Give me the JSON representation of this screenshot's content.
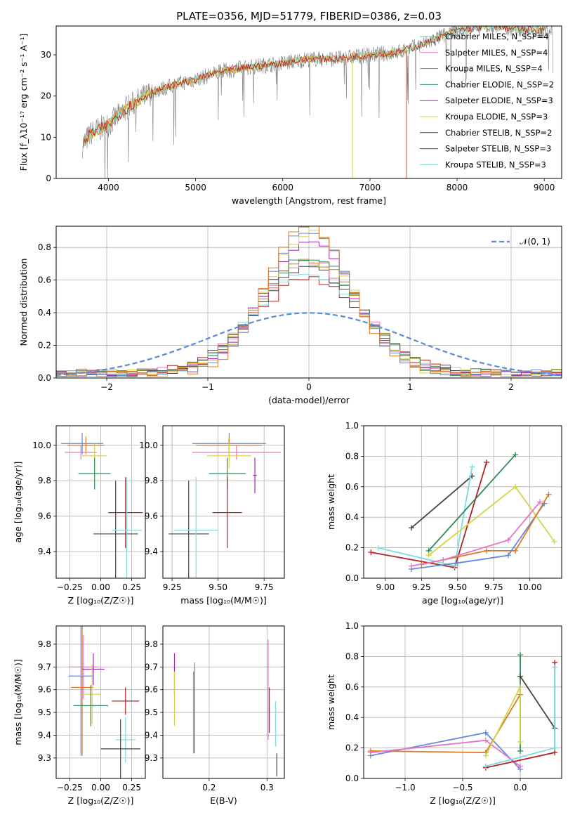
{
  "colors": {
    "chabrier_miles": "#76b7b2",
    "salpeter_miles": "#e377c2",
    "kroupa_miles": "#b8860b",
    "chabrier_elodie": "#2e8b57",
    "salpeter_elodie": "#9c27b0",
    "kroupa_elodie": "#d4d44a",
    "chabrier_stelib": "#444444",
    "salpeter_stelib": "#b22222",
    "kroupa_stelib": "#7fdbdb",
    "blue": "#6688dd",
    "orange": "#e07820",
    "pink": "#e377c2",
    "data": "#808080",
    "normal": "#5b8ad6"
  },
  "chart_data": [
    {
      "id": "spectrum",
      "type": "line",
      "title": "PLATE=0356, MJD=51779, FIBERID=0386, z=0.03",
      "xlabel": "wavelength [Angstrom, rest frame]",
      "ylabel": "Flux [f_λ10⁻¹⁷ erg cm⁻² s⁻¹ A⁻¹]",
      "xlim": [
        3400,
        9200
      ],
      "ylim": [
        0,
        37
      ],
      "xticks": [
        "4000",
        "5000",
        "6000",
        "7000",
        "8000",
        "9000"
      ],
      "yticks": [
        "0",
        "10",
        "20",
        "30"
      ],
      "grid": false,
      "legend_position": "top-right",
      "legend": [
        "Chabrier MILES, N_SSP=4",
        "Salpeter MILES, N_SSP=4",
        "Kroupa MILES, N_SSP=4",
        "Chabrier ELODIE, N_SSP=2",
        "Salpeter ELODIE, N_SSP=3",
        "Kroupa ELODIE, N_SSP=3",
        "Chabrier STELIB, N_SSP=2",
        "Salpeter STELIB, N_SSP=3",
        "Kroupa STELIB, N_SSP=3"
      ],
      "trend_x": [
        3700,
        3800,
        4000,
        4200,
        4500,
        4800,
        5000,
        5300,
        5600,
        6000,
        6300,
        6600,
        7000,
        7300,
        7600,
        8000,
        8400,
        8800,
        9100
      ],
      "trend_y": [
        8,
        11,
        13,
        17,
        21,
        23,
        24,
        26,
        27,
        28,
        29,
        29,
        30,
        30.5,
        32.5,
        36,
        37,
        36,
        36
      ]
    },
    {
      "id": "residuals",
      "type": "histogram",
      "xlabel": "(data-model)/error",
      "ylabel": "Normed distribution",
      "xlim": [
        -2.5,
        2.5
      ],
      "ylim": [
        0,
        0.93
      ],
      "xticks": [
        "−2",
        "−1",
        "0",
        "1",
        "2"
      ],
      "yticks": [
        "0.0",
        "0.2",
        "0.4",
        "0.6",
        "0.8"
      ],
      "grid": true,
      "legend": [
        "𝒩(0, 1)"
      ],
      "legend_position": "top-right",
      "bin_width": 0.1,
      "bin_start": -2.5,
      "peak_values": [
        0.57,
        0.62,
        0.64,
        0.68,
        0.7,
        0.72,
        0.8,
        0.86,
        0.87,
        0.91
      ],
      "normal_curve": {
        "mean": 0,
        "sigma": 1
      }
    },
    {
      "id": "age_vs_z",
      "type": "errorbar",
      "xlabel": "Z [log₁₀(Z/Z☉)]",
      "ylabel": "age  [log₁₀(age/yr)]",
      "xlim": [
        -0.36,
        0.36
      ],
      "ylim": [
        9.25,
        10.11
      ],
      "xticks": [
        "−0.25",
        "0.00",
        "0.25"
      ],
      "yticks": [
        "9.4",
        "9.6",
        "9.8",
        "10.0"
      ],
      "grid": true,
      "points": [
        {
          "x": -0.15,
          "y": 10.01,
          "xerr": 0.17,
          "yerr": 0.06,
          "c": "blue"
        },
        {
          "x": -0.12,
          "y": 10.0,
          "xerr": 0.15,
          "yerr": 0.05,
          "c": "orange"
        },
        {
          "x": -0.16,
          "y": 9.96,
          "xerr": 0.13,
          "yerr": 0.04,
          "c": "pink"
        },
        {
          "x": -0.05,
          "y": 9.94,
          "xerr": 0.1,
          "yerr": 0.07,
          "c": "kroupa_elodie"
        },
        {
          "x": -0.05,
          "y": 9.84,
          "xerr": 0.13,
          "yerr": 0.09,
          "c": "chabrier_elodie"
        },
        {
          "x": 0.12,
          "y": 9.5,
          "xerr": 0.18,
          "yerr": 0.3,
          "c": "chabrier_stelib"
        },
        {
          "x": 0.2,
          "y": 9.62,
          "xerr": 0.14,
          "yerr": 0.2,
          "c": "salpeter_stelib"
        },
        {
          "x": 0.21,
          "y": 9.52,
          "xerr": 0.12,
          "yerr": 0.3,
          "c": "kroupa_stelib"
        }
      ]
    },
    {
      "id": "age_vs_mass",
      "type": "errorbar",
      "xlabel": "mass [log₁₀(M/M☉)]",
      "xlim": [
        9.2,
        9.86
      ],
      "ylim": [
        9.25,
        10.11
      ],
      "xticks": [
        "9.25",
        "9.50",
        "9.75"
      ],
      "yticks": [
        "9.4",
        "9.6",
        "9.8",
        "10.0"
      ],
      "grid": true,
      "points": [
        {
          "x": 9.56,
          "y": 10.01,
          "xerr": 0.2,
          "yerr": 0.06,
          "c": "blue"
        },
        {
          "x": 9.56,
          "y": 10.0,
          "xerr": 0.18,
          "yerr": 0.05,
          "c": "orange"
        },
        {
          "x": 9.6,
          "y": 9.96,
          "xerr": 0.24,
          "yerr": 0.04,
          "c": "pink"
        },
        {
          "x": 9.56,
          "y": 9.94,
          "xerr": 0.12,
          "yerr": 0.07,
          "c": "kroupa_elodie"
        },
        {
          "x": 9.55,
          "y": 9.84,
          "xerr": 0.1,
          "yerr": 0.09,
          "c": "chabrier_elodie"
        },
        {
          "x": 9.7,
          "y": 9.83,
          "xerr": 0.01,
          "yerr": 0.1,
          "c": "salpeter_elodie"
        },
        {
          "x": 9.34,
          "y": 9.5,
          "xerr": 0.11,
          "yerr": 0.3,
          "c": "chabrier_stelib"
        },
        {
          "x": 9.55,
          "y": 9.62,
          "xerr": 0.08,
          "yerr": 0.2,
          "c": "salpeter_stelib"
        },
        {
          "x": 9.38,
          "y": 9.52,
          "xerr": 0.12,
          "yerr": 0.3,
          "c": "kroupa_stelib"
        }
      ]
    },
    {
      "id": "weight_vs_age",
      "type": "line",
      "xlabel": "age  [log₁₀(age/yr)]",
      "ylabel": "mass weight",
      "xlim": [
        8.85,
        10.22
      ],
      "ylim": [
        0,
        1
      ],
      "xticks": [
        "9.00",
        "9.25",
        "9.50",
        "9.75",
        "10.00"
      ],
      "yticks": [
        "0.0",
        "0.2",
        "0.4",
        "0.6",
        "0.8",
        "1.0"
      ],
      "grid": true,
      "series": [
        {
          "c": "chabrier_stelib",
          "x": [
            9.18,
            9.6
          ],
          "y": [
            0.33,
            0.67
          ]
        },
        {
          "c": "salpeter_stelib",
          "x": [
            8.9,
            9.48,
            9.7
          ],
          "y": [
            0.17,
            0.07,
            0.76
          ]
        },
        {
          "c": "kroupa_stelib",
          "x": [
            8.95,
            9.48,
            9.6
          ],
          "y": [
            0.2,
            0.08,
            0.73
          ]
        },
        {
          "c": "chabrier_elodie",
          "x": [
            9.3,
            9.9
          ],
          "y": [
            0.18,
            0.81
          ]
        },
        {
          "c": "kroupa_elodie",
          "x": [
            9.3,
            9.9,
            10.17
          ],
          "y": [
            0.15,
            0.6,
            0.24
          ]
        },
        {
          "c": "blue",
          "x": [
            9.18,
            9.5,
            9.85,
            10.1
          ],
          "y": [
            0.06,
            0.1,
            0.15,
            0.49
          ]
        },
        {
          "c": "orange",
          "x": [
            9.25,
            9.7,
            9.9,
            10.13
          ],
          "y": [
            0.09,
            0.18,
            0.18,
            0.55
          ]
        },
        {
          "c": "pink",
          "x": [
            9.18,
            9.4,
            9.85,
            10.07
          ],
          "y": [
            0.08,
            0.12,
            0.25,
            0.5
          ]
        }
      ]
    },
    {
      "id": "mass_vs_z",
      "type": "errorbar",
      "xlabel": "Z [log₁₀(Z/Z☉)]",
      "ylabel": "mass [log₁₀(M/M☉)]",
      "xlim": [
        -0.36,
        0.36
      ],
      "ylim": [
        9.21,
        9.88
      ],
      "xticks": [
        "−0.25",
        "0.00",
        "0.25"
      ],
      "yticks": [
        "9.3",
        "9.4",
        "9.5",
        "9.6",
        "9.7",
        "9.8"
      ],
      "grid": true,
      "points": [
        {
          "x": -0.14,
          "y": 9.7,
          "xerr": 0.12,
          "yerr": 0.14,
          "c": "pink"
        },
        {
          "x": -0.06,
          "y": 9.69,
          "xerr": 0.09,
          "yerr": 0.07,
          "c": "salpeter_elodie"
        },
        {
          "x": -0.16,
          "y": 9.66,
          "xerr": 0.1,
          "yerr": 0.35,
          "c": "blue"
        },
        {
          "x": -0.15,
          "y": 9.61,
          "xerr": 0.09,
          "yerr": 0.3,
          "c": "orange"
        },
        {
          "x": -0.07,
          "y": 9.58,
          "xerr": 0.07,
          "yerr": 0.13,
          "c": "kroupa_elodie"
        },
        {
          "x": -0.08,
          "y": 9.53,
          "xerr": 0.14,
          "yerr": 0.09,
          "c": "chabrier_elodie"
        },
        {
          "x": 0.2,
          "y": 9.55,
          "xerr": 0.11,
          "yerr": 0.06,
          "c": "salpeter_stelib"
        },
        {
          "x": 0.2,
          "y": 9.38,
          "xerr": 0.08,
          "yerr": 0.1,
          "c": "kroupa_stelib"
        },
        {
          "x": 0.16,
          "y": 9.34,
          "xerr": 0.16,
          "yerr": 0.13,
          "c": "chabrier_stelib"
        }
      ]
    },
    {
      "id": "mass_vs_ebv",
      "type": "errorbar",
      "xlabel": "E(B-V)",
      "xlim": [
        0.12,
        0.33
      ],
      "ylim": [
        9.21,
        9.88
      ],
      "xticks": [
        "0.2",
        "0.3"
      ],
      "yticks": [
        "9.3",
        "9.4",
        "9.5",
        "9.6",
        "9.7",
        "9.8"
      ],
      "grid": true,
      "points": [
        {
          "x": 0.14,
          "y": 9.67,
          "xerr": 0,
          "yerr": 0.09,
          "c": "salpeter_elodie"
        },
        {
          "x": 0.14,
          "y": 9.56,
          "xerr": 0,
          "yerr": 0.12,
          "c": "kroupa_elodie"
        },
        {
          "x": 0.175,
          "y": 9.52,
          "xerr": 0,
          "yerr": 0.2,
          "c": "blue"
        },
        {
          "x": 0.173,
          "y": 9.5,
          "xerr": 0,
          "yerr": 0.18,
          "c": "orange"
        },
        {
          "x": 0.302,
          "y": 9.6,
          "xerr": 0,
          "yerr": 0.22,
          "c": "pink"
        },
        {
          "x": 0.304,
          "y": 9.51,
          "xerr": 0,
          "yerr": 0.1,
          "c": "salpeter_stelib"
        },
        {
          "x": 0.315,
          "y": 9.45,
          "xerr": 0,
          "yerr": 0.1,
          "c": "kroupa_stelib"
        },
        {
          "x": 0.317,
          "y": 9.27,
          "xerr": 0,
          "yerr": 0.05,
          "c": "chabrier_stelib"
        }
      ]
    },
    {
      "id": "weight_vs_z",
      "type": "line",
      "xlabel": "Z [log₁₀(Z/Z☉)]",
      "ylabel": "mass weight",
      "xlim": [
        -1.36,
        0.36
      ],
      "ylim": [
        0,
        1
      ],
      "xticks": [
        "−1.0",
        "−0.5",
        "0.0"
      ],
      "yticks": [
        "0.0",
        "0.2",
        "0.4",
        "0.6",
        "0.8",
        "1.0"
      ],
      "grid": true,
      "series": [
        {
          "c": "blue",
          "x": [
            -1.3,
            -0.3,
            0.0
          ],
          "y": [
            0.15,
            0.3,
            0.06
          ]
        },
        {
          "c": "orange",
          "x": [
            -1.3,
            -0.3,
            0.0
          ],
          "y": [
            0.18,
            0.17,
            0.55
          ]
        },
        {
          "c": "pink",
          "x": [
            -1.3,
            -0.3,
            0.0
          ],
          "y": [
            0.17,
            0.25,
            0.08
          ]
        },
        {
          "c": "chabrier_elodie",
          "x": [
            0.0,
            0.0
          ],
          "y": [
            0.18,
            0.81
          ]
        },
        {
          "c": "kroupa_elodie",
          "x": [
            -0.3,
            0.0,
            0.0
          ],
          "y": [
            0.15,
            0.6,
            0.24
          ]
        },
        {
          "c": "chabrier_stelib",
          "x": [
            0.0,
            0.3
          ],
          "y": [
            0.67,
            0.33
          ]
        },
        {
          "c": "salpeter_stelib",
          "x": [
            -0.3,
            0.3,
            0.3
          ],
          "y": [
            0.07,
            0.17,
            0.76
          ]
        },
        {
          "c": "kroupa_stelib",
          "x": [
            -0.3,
            0.3,
            0.3
          ],
          "y": [
            0.08,
            0.2,
            0.73
          ]
        }
      ]
    }
  ]
}
